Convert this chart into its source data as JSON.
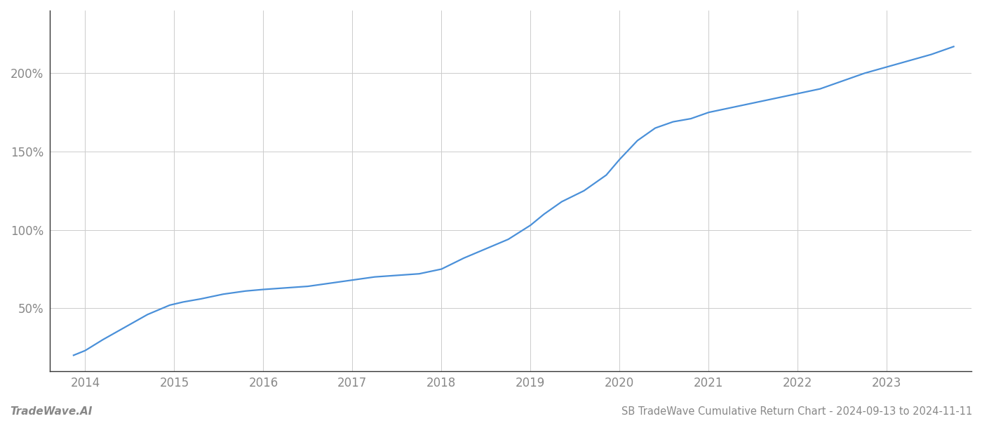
{
  "title": "SB TradeWave Cumulative Return Chart - 2024-09-13 to 2024-11-11",
  "watermark": "TradeWave.AI",
  "line_color": "#4a90d9",
  "background_color": "#ffffff",
  "grid_color": "#cccccc",
  "text_color": "#888888",
  "spine_color": "#333333",
  "x_years": [
    2013.87,
    2014.0,
    2014.2,
    2014.45,
    2014.7,
    2014.95,
    2015.1,
    2015.3,
    2015.55,
    2015.8,
    2016.0,
    2016.25,
    2016.5,
    2016.75,
    2017.0,
    2017.25,
    2017.5,
    2017.75,
    2018.0,
    2018.25,
    2018.5,
    2018.75,
    2019.0,
    2019.15,
    2019.35,
    2019.6,
    2019.85,
    2020.0,
    2020.2,
    2020.4,
    2020.6,
    2020.8,
    2021.0,
    2021.25,
    2021.5,
    2021.75,
    2022.0,
    2022.25,
    2022.5,
    2022.75,
    2023.0,
    2023.25,
    2023.5,
    2023.75
  ],
  "y_values": [
    20,
    23,
    30,
    38,
    46,
    52,
    54,
    56,
    59,
    61,
    62,
    63,
    64,
    66,
    68,
    70,
    71,
    72,
    75,
    82,
    88,
    94,
    103,
    110,
    118,
    125,
    135,
    145,
    157,
    165,
    169,
    171,
    175,
    178,
    181,
    184,
    187,
    190,
    195,
    200,
    204,
    208,
    212,
    217
  ],
  "xlim": [
    2013.6,
    2023.95
  ],
  "ylim": [
    10,
    240
  ],
  "yticks": [
    50,
    100,
    150,
    200
  ],
  "xticks": [
    2014,
    2015,
    2016,
    2017,
    2018,
    2019,
    2020,
    2021,
    2022,
    2023
  ],
  "line_width": 1.6,
  "title_fontsize": 10.5,
  "tick_fontsize": 12,
  "watermark_fontsize": 11
}
